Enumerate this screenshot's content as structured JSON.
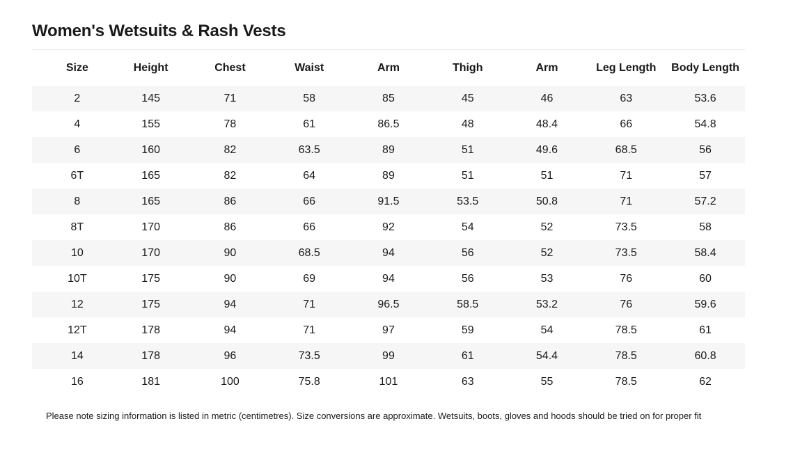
{
  "title": "Women's Wetsuits & Rash Vests",
  "headers": [
    "Size",
    "Height",
    "Chest",
    "Waist",
    "Arm",
    "Thigh",
    "Arm",
    "Leg Length",
    "Body Length"
  ],
  "rows": [
    [
      "2",
      "145",
      "71",
      "58",
      "85",
      "45",
      "46",
      "63",
      "53.6"
    ],
    [
      "4",
      "155",
      "78",
      "61",
      "86.5",
      "48",
      "48.4",
      "66",
      "54.8"
    ],
    [
      "6",
      "160",
      "82",
      "63.5",
      "89",
      "51",
      "49.6",
      "68.5",
      "56"
    ],
    [
      "6T",
      "165",
      "82",
      "64",
      "89",
      "51",
      "51",
      "71",
      "57"
    ],
    [
      "8",
      "165",
      "86",
      "66",
      "91.5",
      "53.5",
      "50.8",
      "71",
      "57.2"
    ],
    [
      "8T",
      "170",
      "86",
      "66",
      "92",
      "54",
      "52",
      "73.5",
      "58"
    ],
    [
      "10",
      "170",
      "90",
      "68.5",
      "94",
      "56",
      "52",
      "73.5",
      "58.4"
    ],
    [
      "10T",
      "175",
      "90",
      "69",
      "94",
      "56",
      "53",
      "76",
      "60"
    ],
    [
      "12",
      "175",
      "94",
      "71",
      "96.5",
      "58.5",
      "53.2",
      "76",
      "59.6"
    ],
    [
      "12T",
      "178",
      "94",
      "71",
      "97",
      "59",
      "54",
      "78.5",
      "61"
    ],
    [
      "14",
      "178",
      "96",
      "73.5",
      "99",
      "61",
      "54.4",
      "78.5",
      "60.8"
    ],
    [
      "16",
      "181",
      "100",
      "75.8",
      "101",
      "63",
      "55",
      "78.5",
      "62"
    ]
  ],
  "note": "Please note sizing information is listed in metric (centimetres). Size conversions are approximate. Wetsuits, boots, gloves and hoods should be tried on for proper fit"
}
